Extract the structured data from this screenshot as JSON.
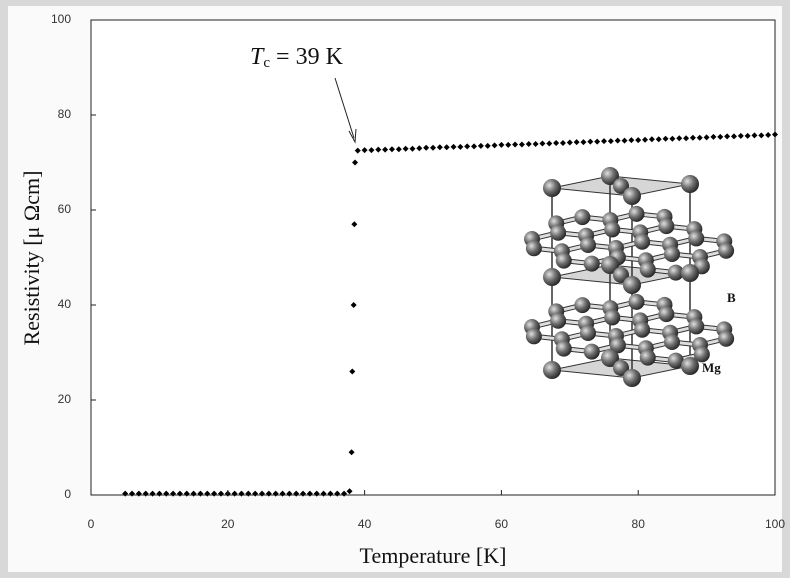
{
  "chart_data": {
    "type": "scatter",
    "x_label": "Temperature [K]",
    "y_label": "Resistivity [μ Ωcm]",
    "annotation": {
      "symbol": "T",
      "subscript": "c",
      "text": "= 39 K"
    },
    "inset_labels": [
      "B",
      "Mg"
    ],
    "color": "#000000",
    "xlim": [
      0,
      100
    ],
    "xticks": [
      0,
      20,
      40,
      60,
      80,
      100
    ],
    "ylim": [
      0,
      100
    ],
    "yticks": [
      0,
      20,
      40,
      60,
      80,
      100
    ],
    "grid": false,
    "x": [
      5,
      6,
      7,
      8,
      9,
      10,
      11,
      12,
      13,
      14,
      15,
      16,
      17,
      18,
      19,
      20,
      21,
      22,
      23,
      24,
      25,
      26,
      27,
      28,
      29,
      30,
      31,
      32,
      33,
      34,
      35,
      36,
      37,
      37.8,
      38.1,
      38.2,
      38.4,
      38.5,
      38.6,
      39,
      40,
      41,
      42,
      43,
      44,
      45,
      46,
      47,
      48,
      49,
      50,
      51,
      52,
      53,
      54,
      55,
      56,
      57,
      58,
      59,
      60,
      61,
      62,
      63,
      64,
      65,
      66,
      67,
      68,
      69,
      70,
      71,
      72,
      73,
      74,
      75,
      76,
      77,
      78,
      79,
      80,
      81,
      82,
      83,
      84,
      85,
      86,
      87,
      88,
      89,
      90,
      91,
      92,
      93,
      94,
      95,
      96,
      97,
      98,
      99,
      100
    ],
    "y": [
      0.3,
      0.3,
      0.3,
      0.3,
      0.3,
      0.3,
      0.3,
      0.3,
      0.3,
      0.3,
      0.3,
      0.3,
      0.3,
      0.3,
      0.3,
      0.3,
      0.3,
      0.3,
      0.3,
      0.3,
      0.3,
      0.3,
      0.3,
      0.3,
      0.3,
      0.3,
      0.3,
      0.3,
      0.3,
      0.3,
      0.3,
      0.3,
      0.3,
      0.8,
      9,
      26,
      40,
      57,
      70,
      72.5,
      72.6,
      72.6,
      72.7,
      72.7,
      72.8,
      72.8,
      72.9,
      72.9,
      73.0,
      73.1,
      73.1,
      73.2,
      73.2,
      73.3,
      73.3,
      73.4,
      73.4,
      73.5,
      73.5,
      73.6,
      73.7,
      73.7,
      73.8,
      73.8,
      73.9,
      73.9,
      74.0,
      74.0,
      74.1,
      74.1,
      74.2,
      74.3,
      74.3,
      74.4,
      74.4,
      74.5,
      74.5,
      74.6,
      74.6,
      74.7,
      74.7,
      74.8,
      74.9,
      74.9,
      75.0,
      75.0,
      75.1,
      75.1,
      75.2,
      75.2,
      75.3,
      75.4,
      75.4,
      75.5,
      75.5,
      75.6,
      75.6,
      75.7,
      75.7,
      75.8,
      75.9
    ]
  }
}
